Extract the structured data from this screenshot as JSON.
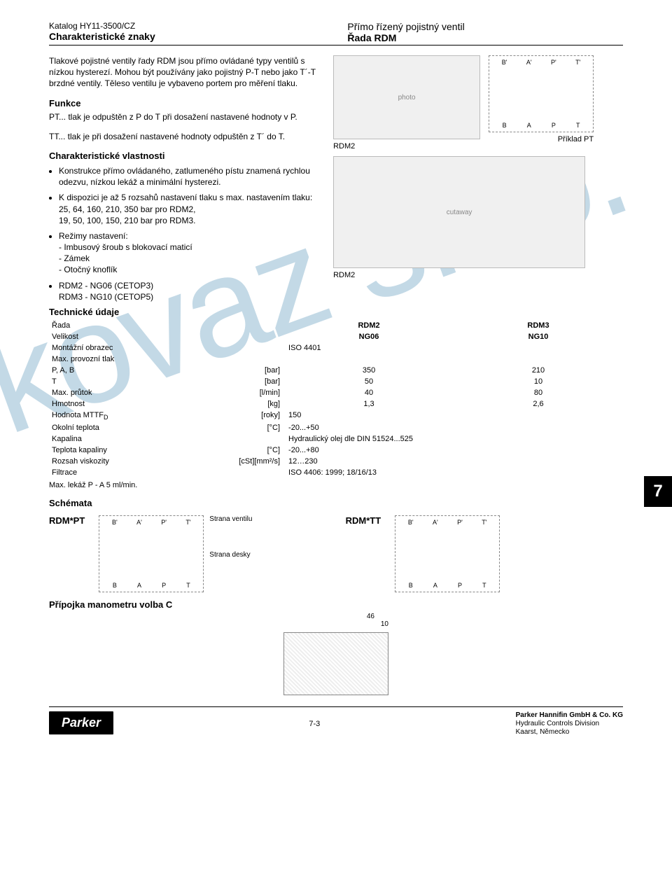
{
  "header": {
    "catalog_code": "Katalog HY11-3500/CZ",
    "left_bold": "Charakteristické znaky",
    "right_title": "Přímo řízený pojistný ventil",
    "right_bold": "Řada RDM"
  },
  "watermark": "kovaz s.r.o.",
  "intro_text": "Tlakové pojistné ventily řady RDM jsou přímo ovládané typy ventilů s nízkou hysterezí. Mohou být používány jako pojistný P-T nebo jako T´-T brzdné ventily. Těleso ventilu je vybaveno portem pro měření tlaku.",
  "funkce": {
    "title": "Funkce",
    "pt": "PT... tlak je odpuštěn z P do T při dosažení nastavené hodnoty v P.",
    "tt": "TT... tlak je při dosažení nastavené hodnoty odpuštěn z T´ do T."
  },
  "char": {
    "title": "Charakteristické vlastnosti",
    "b1": "Konstrukce přímo ovládaného, zatlumeného pístu znamená rychlou odezvu, nízkou lekáž a minimální hysterezi.",
    "b2_a": "K dispozici je až 5 rozsahů nastavení tlaku s max. nastavením tlaku:",
    "b2_b": "25, 64, 160, 210, 350  bar pro RDM2,",
    "b2_c": "19, 50, 100, 150, 210 bar pro RDM3.",
    "b3_a": "Režimy nastavení:",
    "b3_b": "- Imbusový šroub s blokovací maticí",
    "b3_c": "- Zámek",
    "b3_d": "- Otočný knoflík",
    "b4_a": "RDM2 - NG06 (CETOP3)",
    "b4_b": "RDM3 - NG10 (CETOP5)"
  },
  "captions": {
    "rdm2": "RDM2",
    "pt_example": "Příklad PT",
    "rdm2_cut": "RDM2"
  },
  "schematic_ports": {
    "top": [
      "B'",
      "A'",
      "P'",
      "T'"
    ],
    "bottom": [
      "B",
      "A",
      "P",
      "T"
    ]
  },
  "tech": {
    "title": "Technické údaje",
    "rows": [
      {
        "label": "Řada",
        "unit": "",
        "v1": "RDM2",
        "v2": "RDM3",
        "bold": true
      },
      {
        "label": "Velikost",
        "unit": "",
        "v1": "NG06",
        "v2": "NG10",
        "bolditalic": true
      },
      {
        "label": "Montážní obrazec",
        "unit": "",
        "span": "ISO 4401"
      },
      {
        "label": "Max. provozní tlak",
        "unit": "",
        "span": ""
      },
      {
        "label": "P, A, B",
        "unit": "[bar]",
        "v1": "350",
        "v2": "210",
        "indent": true
      },
      {
        "label": "T",
        "unit": "[bar]",
        "v1": "50",
        "v2": "10",
        "indent": true
      },
      {
        "label": "Max. průtok",
        "unit": "[l/min]",
        "v1": "40",
        "v2": "80"
      },
      {
        "label": "Hmotnost",
        "unit": "[kg]",
        "v1": "1,3",
        "v2": "2,6"
      },
      {
        "label": "Hodnota MTTF",
        "sub": "D",
        "unit": "[roky]",
        "span": "150"
      },
      {
        "label": "Okolní teplota",
        "unit": "[°C]",
        "span": "-20...+50"
      },
      {
        "label": "Kapalina",
        "unit": "",
        "span": "Hydraulický olej dle DIN 51524...525"
      },
      {
        "label": "Teplota kapaliny",
        "unit": "[°C]",
        "span": "-20...+80"
      },
      {
        "label": "Rozsah viskozity",
        "unit": "[cSt][mm²/s]",
        "span": "12…230"
      },
      {
        "label": "Filtrace",
        "unit": "",
        "span": "ISO 4406: 1999; 18/16/13"
      }
    ],
    "note": "Max. lekáž P - A 5 ml/min."
  },
  "schemas": {
    "title": "Schémata",
    "pt": "RDM*PT",
    "tt": "RDM*TT",
    "strana_ventilu": "Strana ventilu",
    "strana_desky": "Strana desky",
    "connector_title": "Přípojka manometru volba C",
    "dim1": "46",
    "dim2": "10"
  },
  "section_tab": "7",
  "footer": {
    "page": "7-3",
    "logo": "Parker",
    "addr1": "Parker Hannifin GmbH & Co. KG",
    "addr2": "Hydraulic Controls Division",
    "addr3": "Kaarst, Německo"
  }
}
